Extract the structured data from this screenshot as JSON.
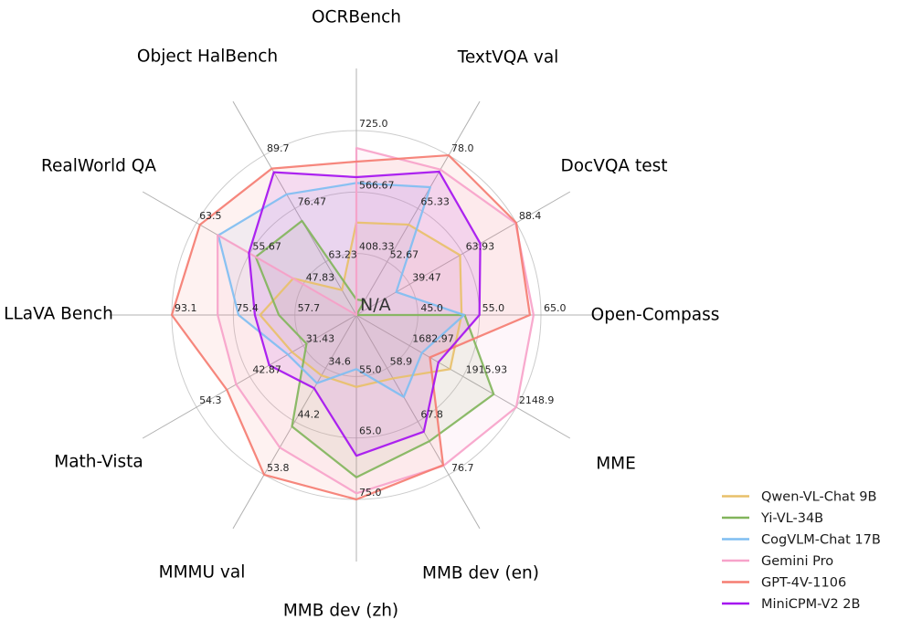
{
  "figure": {
    "background": "#ffffff",
    "grid_color": "#cccccc",
    "spoke_color": "#b0b0b0",
    "tick_text_color": "#262626",
    "title_text_color": "#000000",
    "center_label_color": "#333333"
  },
  "chart_data": {
    "type": "radar",
    "center_label": "N/A",
    "legend_position": "lower right",
    "axes": [
      {
        "label": "OCRBench",
        "ticks": [
          "408.33",
          "566.67",
          "725.0"
        ],
        "min": 250,
        "max": 725
      },
      {
        "label": "TextVQA val",
        "ticks": [
          "52.67",
          "65.33",
          "78.0"
        ],
        "min": 40,
        "max": 78
      },
      {
        "label": "DocVQA test",
        "ticks": [
          "39.47",
          "63.93",
          "88.4"
        ],
        "min": 15,
        "max": 88.4
      },
      {
        "label": "Open-Compass",
        "ticks": [
          "45.0",
          "55.0",
          "65.0"
        ],
        "min": 35,
        "max": 65
      },
      {
        "label": "MME",
        "ticks": [
          "1682.97",
          "1915.93",
          "2148.9"
        ],
        "min": 1450,
        "max": 2148.9
      },
      {
        "label": "MMB dev (en)",
        "ticks": [
          "58.9",
          "67.8",
          "76.7"
        ],
        "min": 50,
        "max": 76.7
      },
      {
        "label": "MMB dev (zh)",
        "ticks": [
          "55.0",
          "65.0",
          "75.0"
        ],
        "min": 45,
        "max": 75
      },
      {
        "label": "MMMU val",
        "ticks": [
          "34.6",
          "44.2",
          "53.8"
        ],
        "min": 25,
        "max": 53.8
      },
      {
        "label": "Math-Vista",
        "ticks": [
          "31.43",
          "42.87",
          "54.3"
        ],
        "min": 20,
        "max": 54.3
      },
      {
        "label": "LLaVA Bench",
        "ticks": [
          "57.7",
          "75.4",
          "93.1"
        ],
        "min": 40,
        "max": 93.1
      },
      {
        "label": "RealWorld QA",
        "ticks": [
          "47.83",
          "55.67",
          "63.5"
        ],
        "min": 40,
        "max": 63.5
      },
      {
        "label": "Object HalBench",
        "ticks": [
          "63.23",
          "76.47",
          "89.7"
        ],
        "min": 50,
        "max": 89.7
      }
    ],
    "series": [
      {
        "name": "Qwen-VL-Chat 9B",
        "color": "#e8c06a",
        "values": [
          488,
          61.5,
          62.6,
          52.1,
          1860.0,
          60.6,
          56.7,
          35.9,
          33.8,
          67.7,
          49.3,
          56.2
        ]
      },
      {
        "name": "Yi-VL-34B",
        "color": "#82b55c",
        "values": [
          290,
          43.4,
          null,
          52.6,
          2050.2,
          71.1,
          71.4,
          45.1,
          30.7,
          62.3,
          54.8,
          73.4
        ]
      },
      {
        "name": "CogVLM-Chat 17B",
        "color": "#7fbef2",
        "values": [
          590,
          70.4,
          33.3,
          52.5,
          1736.6,
          63.7,
          53.8,
          37.3,
          34.7,
          73.9,
          60.3,
          80.0
        ]
      },
      {
        "name": "Gemini Pro",
        "color": "#f7a3ca",
        "values": [
          680,
          74.6,
          88.1,
          63.8,
          2148.9,
          75.2,
          74.0,
          48.9,
          45.8,
          79.9,
          60.4,
          null
        ]
      },
      {
        "name": "GPT-4V-1106",
        "color": "#f57d72",
        "values": [
          645,
          78.0,
          88.4,
          63.2,
          1771.5,
          75.1,
          75.0,
          53.8,
          47.8,
          93.1,
          63.0,
          86.4
        ]
      },
      {
        "name": "MiniCPM-V2 2B",
        "color": "#a512f0",
        "values": [
          605,
          74.1,
          71.9,
          55.0,
          1808.6,
          69.5,
          67.9,
          38.2,
          38.7,
          69.2,
          55.8,
          85.5
        ]
      }
    ]
  }
}
